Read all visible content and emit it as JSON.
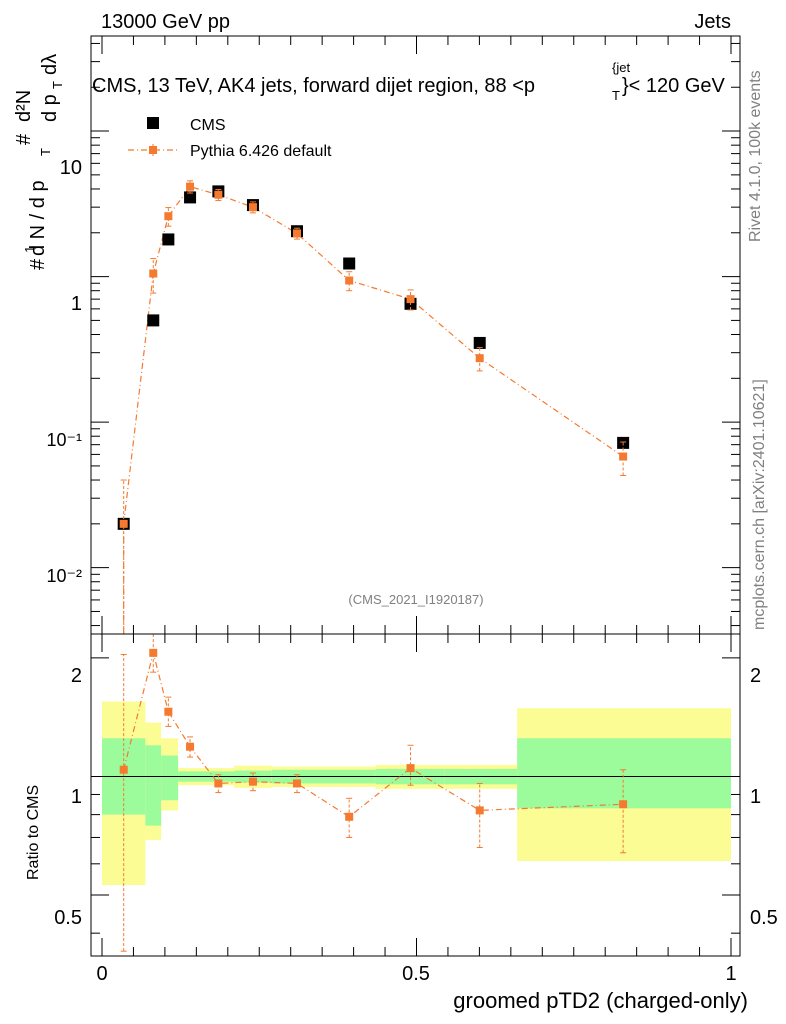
{
  "header": {
    "left": "13000 GeV pp",
    "right": "Jets"
  },
  "side_labels": {
    "rivet": "Rivet 4.1.0,  100k events",
    "mcplots": "mcplots.cern.ch [arXiv:2401.10621]"
  },
  "chart_data": {
    "type": "scatter",
    "title": "CMS, 13 TeV, AK4 jets, forward dijet region, 88 <p_T^{jet}< 120 GeV",
    "title_parts": {
      "prefix": "CMS, 13 TeV, AK4 jets, forward dijet region, 88 <p",
      "sup": "{jet",
      "sub": "T",
      "suffix": "}< 120 GeV"
    },
    "ylabel_main": "1/(dN/dpT) d²N/(dpT dλ)",
    "ylabel_ratio": "Ratio to CMS",
    "xlabel": "groomed pTD2 (charged-only)",
    "analysis_tag": "(CMS_2021_I1920187)",
    "yscale": "log",
    "ylim": [
      0.0035,
      45
    ],
    "ratio_ylim": [
      0.35,
      2.3
    ],
    "xlim": [
      0,
      1
    ],
    "x_ticks": [
      "0",
      "0.5",
      "1"
    ],
    "y_ticks": [
      "10⁻²",
      "10⁻¹",
      "1",
      "10"
    ],
    "ratio_ticks": [
      "0.5",
      "1",
      "2"
    ],
    "legend": [
      "CMS",
      "Pythia 6.426 default"
    ],
    "series": [
      {
        "name": "CMS",
        "color": "#000000",
        "x": [
          0.0345,
          0.0815,
          0.1055,
          0.14,
          0.185,
          0.24,
          0.31,
          0.393,
          0.4905,
          0.6005,
          0.8285
        ],
        "y": [
          0.02,
          0.5,
          1.8,
          3.5,
          3.85,
          3.1,
          2.05,
          1.23,
          0.65,
          0.35,
          0.072
        ]
      },
      {
        "name": "Pythia 6.426 default",
        "color": "#f47a30",
        "x": [
          0.0345,
          0.0815,
          0.1055,
          0.14,
          0.185,
          0.24,
          0.31,
          0.393,
          0.4905,
          0.6005,
          0.8285
        ],
        "y": [
          0.02,
          1.05,
          2.6,
          4.15,
          3.65,
          3.0,
          1.98,
          0.94,
          0.7,
          0.275,
          0.058
        ],
        "yerr": [
          0.02,
          0.28,
          0.38,
          0.4,
          0.32,
          0.26,
          0.17,
          0.14,
          0.11,
          0.05,
          0.015
        ]
      }
    ],
    "ratio": {
      "x": [
        0.0345,
        0.0815,
        0.1055,
        0.14,
        0.185,
        0.24,
        0.31,
        0.393,
        0.4905,
        0.6005,
        0.8285
      ],
      "y": [
        1.04,
        2.06,
        1.46,
        1.19,
        0.96,
        0.97,
        0.96,
        0.79,
        1.05,
        0.82,
        0.85
      ],
      "err_lo": [
        0.68,
        0.22,
        0.12,
        0.07,
        0.05,
        0.05,
        0.05,
        0.09,
        0.1,
        0.16,
        0.21
      ],
      "err_hi": [
        1.0,
        0.25,
        0.13,
        0.07,
        0.05,
        0.05,
        0.05,
        0.09,
        0.15,
        0.14,
        0.19
      ]
    },
    "bands": [
      {
        "x0": 0.0,
        "x1": 0.069,
        "inner": [
          0.8,
          1.25
        ],
        "outer": [
          0.53,
          1.55
        ]
      },
      {
        "x0": 0.069,
        "x1": 0.094,
        "inner": [
          0.75,
          1.2
        ],
        "outer": [
          0.69,
          1.37
        ]
      },
      {
        "x0": 0.094,
        "x1": 0.121,
        "inner": [
          0.87,
          1.13
        ],
        "outer": [
          0.82,
          1.25
        ]
      },
      {
        "x0": 0.121,
        "x1": 0.21,
        "inner": [
          0.97,
          1.03
        ],
        "outer": [
          0.95,
          1.05
        ]
      },
      {
        "x0": 0.21,
        "x1": 0.27,
        "inner": [
          0.965,
          1.035
        ],
        "outer": [
          0.935,
          1.065
        ]
      },
      {
        "x0": 0.27,
        "x1": 0.435,
        "inner": [
          0.96,
          1.04
        ],
        "outer": [
          0.94,
          1.06
        ]
      },
      {
        "x0": 0.435,
        "x1": 0.545,
        "inner": [
          0.955,
          1.045
        ],
        "outer": [
          0.93,
          1.07
        ]
      },
      {
        "x0": 0.545,
        "x1": 0.66,
        "inner": [
          0.955,
          1.045
        ],
        "outer": [
          0.93,
          1.07
        ]
      },
      {
        "x0": 0.66,
        "x1": 1.0,
        "inner": [
          0.83,
          1.25
        ],
        "outer": [
          0.61,
          1.49
        ]
      }
    ],
    "band_colors": {
      "inner": "#9cfc9c",
      "outer": "#fcfc94"
    }
  }
}
